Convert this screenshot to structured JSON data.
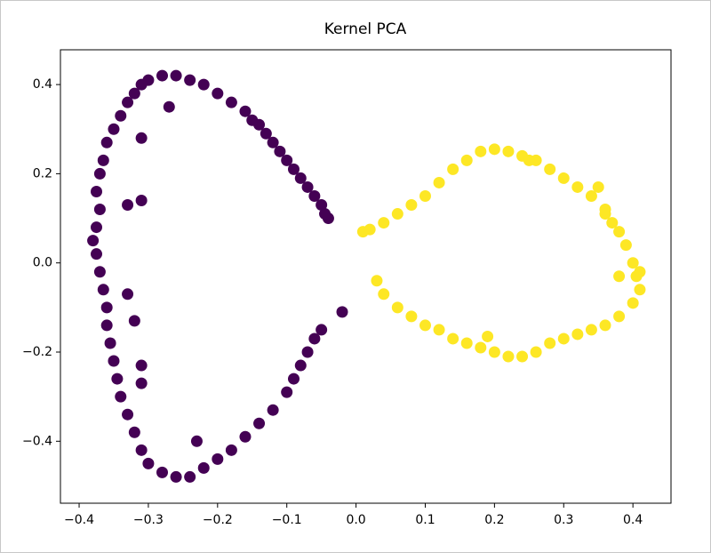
{
  "chart_data": {
    "type": "scatter",
    "title": "Kernel PCA",
    "xlim": [
      -0.427,
      0.455
    ],
    "ylim": [
      -0.539,
      0.478
    ],
    "xticks": [
      {
        "value": -0.4,
        "label": "−0.4"
      },
      {
        "value": -0.3,
        "label": "−0.3"
      },
      {
        "value": -0.2,
        "label": "−0.2"
      },
      {
        "value": -0.1,
        "label": "−0.1"
      },
      {
        "value": 0,
        "label": "0.0"
      },
      0.1,
      0.2,
      0.3,
      0.4
    ],
    "yticks": [
      {
        "value": -0.4,
        "label": "−0.4"
      },
      {
        "value": -0.2,
        "label": "−0.2"
      },
      {
        "value": 0,
        "label": "0.0"
      },
      0.2,
      0.4
    ],
    "series": [
      {
        "color": "#440154",
        "x": [
          -0.04,
          -0.045,
          -0.05,
          -0.06,
          -0.07,
          -0.08,
          -0.09,
          -0.1,
          -0.11,
          -0.12,
          -0.13,
          -0.14,
          -0.15,
          -0.16,
          -0.18,
          -0.2,
          -0.22,
          -0.24,
          -0.26,
          -0.28,
          -0.3,
          -0.31,
          -0.32,
          -0.33,
          -0.34,
          -0.35,
          -0.36,
          -0.365,
          -0.37,
          -0.375,
          -0.37,
          -0.375,
          -0.38,
          -0.375,
          -0.37,
          -0.365,
          -0.36,
          -0.36,
          -0.355,
          -0.35,
          -0.345,
          -0.34,
          -0.33,
          -0.32,
          -0.31,
          -0.3,
          -0.28,
          -0.26,
          -0.24,
          -0.22,
          -0.2,
          -0.18,
          -0.16,
          -0.14,
          -0.12,
          -0.1,
          -0.09,
          -0.08,
          -0.07,
          -0.06,
          -0.05,
          -0.02,
          -0.27,
          -0.31,
          -0.31,
          -0.33,
          -0.32,
          -0.31,
          -0.23,
          -0.33,
          -0.31
        ],
        "values": [
          0.1,
          0.11,
          0.13,
          0.15,
          0.17,
          0.19,
          0.21,
          0.23,
          0.25,
          0.27,
          0.29,
          0.31,
          0.32,
          0.34,
          0.36,
          0.38,
          0.4,
          0.41,
          0.42,
          0.42,
          0.41,
          0.4,
          0.38,
          0.36,
          0.33,
          0.3,
          0.27,
          0.23,
          0.2,
          0.16,
          0.12,
          0.08,
          0.05,
          0.02,
          -0.02,
          -0.06,
          -0.1,
          -0.14,
          -0.18,
          -0.22,
          -0.26,
          -0.3,
          -0.34,
          -0.38,
          -0.42,
          -0.45,
          -0.47,
          -0.48,
          -0.48,
          -0.46,
          -0.44,
          -0.42,
          -0.39,
          -0.36,
          -0.33,
          -0.29,
          -0.26,
          -0.23,
          -0.2,
          -0.17,
          -0.15,
          -0.11,
          0.35,
          0.28,
          0.14,
          0.13,
          -0.13,
          -0.23,
          -0.4,
          -0.07,
          -0.27
        ]
      },
      {
        "color": "#fde725",
        "x": [
          0.01,
          0.02,
          0.04,
          0.06,
          0.08,
          0.1,
          0.12,
          0.14,
          0.16,
          0.18,
          0.2,
          0.22,
          0.24,
          0.26,
          0.28,
          0.3,
          0.32,
          0.34,
          0.36,
          0.37,
          0.38,
          0.39,
          0.4,
          0.405,
          0.41,
          0.4,
          0.38,
          0.36,
          0.34,
          0.32,
          0.3,
          0.28,
          0.26,
          0.24,
          0.22,
          0.2,
          0.18,
          0.16,
          0.14,
          0.12,
          0.1,
          0.08,
          0.06,
          0.04,
          0.03,
          0.19,
          0.35,
          0.36,
          0.25,
          0.41,
          0.38
        ],
        "values": [
          0.07,
          0.075,
          0.09,
          0.11,
          0.13,
          0.15,
          0.18,
          0.21,
          0.23,
          0.25,
          0.255,
          0.25,
          0.24,
          0.23,
          0.21,
          0.19,
          0.17,
          0.15,
          0.12,
          0.09,
          0.07,
          0.04,
          0.0,
          -0.03,
          -0.06,
          -0.09,
          -0.12,
          -0.14,
          -0.15,
          -0.16,
          -0.17,
          -0.18,
          -0.2,
          -0.21,
          -0.21,
          -0.2,
          -0.19,
          -0.18,
          -0.17,
          -0.15,
          -0.14,
          -0.12,
          -0.1,
          -0.07,
          -0.04,
          -0.165,
          0.17,
          0.11,
          0.23,
          -0.02,
          -0.03
        ]
      }
    ]
  }
}
